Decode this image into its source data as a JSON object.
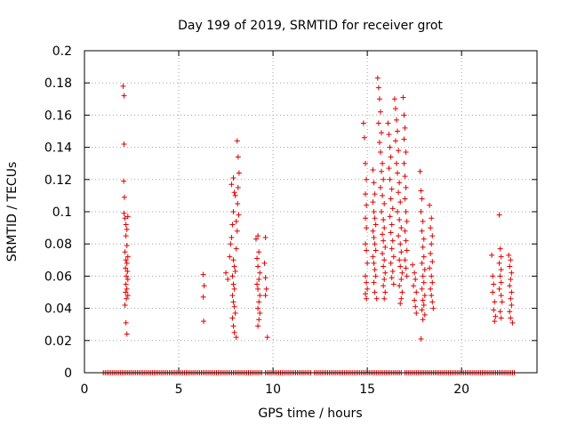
{
  "chart_data": {
    "type": "scatter",
    "title": "Day 199 of 2019, SRMTID for receiver grot",
    "xlabel": "GPS time / hours",
    "ylabel": "SRMTID / TECUs",
    "xlim": [
      0,
      24
    ],
    "ylim": [
      0,
      0.2
    ],
    "x_ticks": [
      0,
      5,
      10,
      15,
      20
    ],
    "x_tick_labels": [
      "0",
      "5",
      "10",
      "15",
      "20"
    ],
    "y_ticks": [
      0,
      0.02,
      0.04,
      0.06,
      0.08,
      0.1,
      0.12,
      0.14,
      0.16,
      0.18,
      0.2
    ],
    "y_tick_labels": [
      "0",
      "0.02",
      "0.04",
      "0.06",
      "0.08",
      "0.1",
      "0.12",
      "0.14",
      "0.16",
      "0.18",
      "0.2"
    ],
    "grid": true,
    "marker": "+",
    "marker_color": "#e00000",
    "zero_baseline_ranges": [
      [
        1.0,
        9.4
      ],
      [
        9.6,
        12.0
      ],
      [
        12.2,
        16.8
      ],
      [
        17.0,
        22.8
      ]
    ],
    "series": [
      {
        "name": "SRMTID",
        "points": [
          [
            2.05,
            0.178
          ],
          [
            2.1,
            0.172
          ],
          [
            2.1,
            0.142
          ],
          [
            2.08,
            0.119
          ],
          [
            2.12,
            0.109
          ],
          [
            2.1,
            0.099
          ],
          [
            2.15,
            0.096
          ],
          [
            2.2,
            0.092
          ],
          [
            2.25,
            0.089
          ],
          [
            2.3,
            0.097
          ],
          [
            2.2,
            0.085
          ],
          [
            2.25,
            0.079
          ],
          [
            2.15,
            0.075
          ],
          [
            2.3,
            0.072
          ],
          [
            2.2,
            0.07
          ],
          [
            2.25,
            0.068
          ],
          [
            2.18,
            0.065
          ],
          [
            2.28,
            0.063
          ],
          [
            2.22,
            0.06
          ],
          [
            2.3,
            0.058
          ],
          [
            2.2,
            0.055
          ],
          [
            2.25,
            0.052
          ],
          [
            2.18,
            0.05
          ],
          [
            2.3,
            0.048
          ],
          [
            2.22,
            0.046
          ],
          [
            2.15,
            0.042
          ],
          [
            2.2,
            0.031
          ],
          [
            2.25,
            0.024
          ],
          [
            6.3,
            0.061
          ],
          [
            6.35,
            0.054
          ],
          [
            6.3,
            0.047
          ],
          [
            6.32,
            0.032
          ],
          [
            7.5,
            0.062
          ],
          [
            7.6,
            0.058
          ],
          [
            7.7,
            0.072
          ],
          [
            7.75,
            0.08
          ],
          [
            7.8,
            0.084
          ],
          [
            7.85,
            0.092
          ],
          [
            7.9,
            0.1
          ],
          [
            7.95,
            0.112
          ],
          [
            7.8,
            0.117
          ],
          [
            7.9,
            0.121
          ],
          [
            8.0,
            0.11
          ],
          [
            8.05,
            0.094
          ],
          [
            8.1,
            0.088
          ],
          [
            8.05,
            0.077
          ],
          [
            7.9,
            0.07
          ],
          [
            7.95,
            0.066
          ],
          [
            8.0,
            0.063
          ],
          [
            7.85,
            0.06
          ],
          [
            7.9,
            0.055
          ],
          [
            7.95,
            0.052
          ],
          [
            7.85,
            0.048
          ],
          [
            7.9,
            0.044
          ],
          [
            7.95,
            0.041
          ],
          [
            8.0,
            0.037
          ],
          [
            7.85,
            0.034
          ],
          [
            7.9,
            0.029
          ],
          [
            7.95,
            0.025
          ],
          [
            8.05,
            0.022
          ],
          [
            8.1,
            0.144
          ],
          [
            8.15,
            0.134
          ],
          [
            8.2,
            0.124
          ],
          [
            8.15,
            0.115
          ],
          [
            8.12,
            0.105
          ],
          [
            8.18,
            0.098
          ],
          [
            9.1,
            0.083
          ],
          [
            9.2,
            0.085
          ],
          [
            9.25,
            0.075
          ],
          [
            9.15,
            0.071
          ],
          [
            9.2,
            0.066
          ],
          [
            9.3,
            0.062
          ],
          [
            9.25,
            0.058
          ],
          [
            9.15,
            0.055
          ],
          [
            9.2,
            0.052
          ],
          [
            9.3,
            0.048
          ],
          [
            9.25,
            0.044
          ],
          [
            9.2,
            0.04
          ],
          [
            9.3,
            0.037
          ],
          [
            9.25,
            0.033
          ],
          [
            9.2,
            0.029
          ],
          [
            9.6,
            0.084
          ],
          [
            9.55,
            0.068
          ],
          [
            9.6,
            0.059
          ],
          [
            9.65,
            0.052
          ],
          [
            9.6,
            0.048
          ],
          [
            9.7,
            0.022
          ],
          [
            14.8,
            0.155
          ],
          [
            14.85,
            0.146
          ],
          [
            14.9,
            0.13
          ],
          [
            14.95,
            0.12
          ],
          [
            14.9,
            0.111
          ],
          [
            14.95,
            0.104
          ],
          [
            14.9,
            0.096
          ],
          [
            14.95,
            0.09
          ],
          [
            14.9,
            0.08
          ],
          [
            14.95,
            0.076
          ],
          [
            15.0,
            0.068
          ],
          [
            14.9,
            0.06
          ],
          [
            14.95,
            0.056
          ],
          [
            15.0,
            0.052
          ],
          [
            14.9,
            0.049
          ],
          [
            14.95,
            0.046
          ],
          [
            15.3,
            0.126
          ],
          [
            15.35,
            0.118
          ],
          [
            15.4,
            0.111
          ],
          [
            15.3,
            0.106
          ],
          [
            15.35,
            0.1
          ],
          [
            15.4,
            0.096
          ],
          [
            15.45,
            0.092
          ],
          [
            15.3,
            0.088
          ],
          [
            15.35,
            0.084
          ],
          [
            15.4,
            0.08
          ],
          [
            15.45,
            0.076
          ],
          [
            15.3,
            0.072
          ],
          [
            15.35,
            0.068
          ],
          [
            15.4,
            0.064
          ],
          [
            15.45,
            0.06
          ],
          [
            15.35,
            0.056
          ],
          [
            15.4,
            0.05
          ],
          [
            15.5,
            0.046
          ],
          [
            15.55,
            0.183
          ],
          [
            15.6,
            0.177
          ],
          [
            15.65,
            0.17
          ],
          [
            15.7,
            0.162
          ],
          [
            15.6,
            0.155
          ],
          [
            15.75,
            0.149
          ],
          [
            15.65,
            0.143
          ],
          [
            15.7,
            0.137
          ],
          [
            15.8,
            0.13
          ],
          [
            15.75,
            0.125
          ],
          [
            15.85,
            0.12
          ],
          [
            15.7,
            0.115
          ],
          [
            15.8,
            0.11
          ],
          [
            15.9,
            0.105
          ],
          [
            15.75,
            0.1
          ],
          [
            15.85,
            0.095
          ],
          [
            15.9,
            0.09
          ],
          [
            15.8,
            0.086
          ],
          [
            15.85,
            0.082
          ],
          [
            15.95,
            0.078
          ],
          [
            15.8,
            0.074
          ],
          [
            15.9,
            0.07
          ],
          [
            15.85,
            0.066
          ],
          [
            15.95,
            0.062
          ],
          [
            15.9,
            0.058
          ],
          [
            15.85,
            0.054
          ],
          [
            15.95,
            0.05
          ],
          [
            15.9,
            0.046
          ],
          [
            16.1,
            0.155
          ],
          [
            16.15,
            0.148
          ],
          [
            16.2,
            0.14
          ],
          [
            16.25,
            0.134
          ],
          [
            16.15,
            0.127
          ],
          [
            16.2,
            0.12
          ],
          [
            16.3,
            0.114
          ],
          [
            16.25,
            0.108
          ],
          [
            16.35,
            0.102
          ],
          [
            16.2,
            0.097
          ],
          [
            16.3,
            0.092
          ],
          [
            16.25,
            0.087
          ],
          [
            16.35,
            0.082
          ],
          [
            16.3,
            0.077
          ],
          [
            16.4,
            0.072
          ],
          [
            16.25,
            0.068
          ],
          [
            16.35,
            0.063
          ],
          [
            16.3,
            0.059
          ],
          [
            16.4,
            0.055
          ],
          [
            16.45,
            0.17
          ],
          [
            16.5,
            0.164
          ],
          [
            16.55,
            0.157
          ],
          [
            16.6,
            0.15
          ],
          [
            16.5,
            0.144
          ],
          [
            16.65,
            0.138
          ],
          [
            16.55,
            0.13
          ],
          [
            16.6,
            0.124
          ],
          [
            16.7,
            0.118
          ],
          [
            16.65,
            0.112
          ],
          [
            16.75,
            0.106
          ],
          [
            16.6,
            0.1
          ],
          [
            16.7,
            0.095
          ],
          [
            16.8,
            0.09
          ],
          [
            16.65,
            0.085
          ],
          [
            16.75,
            0.08
          ],
          [
            16.8,
            0.075
          ],
          [
            16.7,
            0.07
          ],
          [
            16.75,
            0.066
          ],
          [
            16.85,
            0.062
          ],
          [
            16.8,
            0.058
          ],
          [
            16.7,
            0.054
          ],
          [
            16.85,
            0.05
          ],
          [
            16.8,
            0.046
          ],
          [
            16.75,
            0.043
          ],
          [
            16.9,
            0.171
          ],
          [
            16.95,
            0.16
          ],
          [
            17.0,
            0.152
          ],
          [
            16.95,
            0.145
          ],
          [
            17.05,
            0.137
          ],
          [
            16.95,
            0.13
          ],
          [
            17.0,
            0.122
          ],
          [
            17.05,
            0.115
          ],
          [
            17.0,
            0.108
          ],
          [
            17.05,
            0.1
          ],
          [
            17.1,
            0.094
          ],
          [
            17.0,
            0.088
          ],
          [
            17.05,
            0.082
          ],
          [
            17.1,
            0.076
          ],
          [
            17.0,
            0.07
          ],
          [
            17.05,
            0.065
          ],
          [
            17.1,
            0.06
          ],
          [
            17.4,
            0.067
          ],
          [
            17.5,
            0.062
          ],
          [
            17.55,
            0.058
          ],
          [
            17.45,
            0.054
          ],
          [
            17.6,
            0.05
          ],
          [
            17.5,
            0.045
          ],
          [
            17.55,
            0.041
          ],
          [
            17.6,
            0.037
          ],
          [
            17.8,
            0.125
          ],
          [
            17.85,
            0.113
          ],
          [
            17.9,
            0.108
          ],
          [
            17.85,
            0.1
          ],
          [
            17.95,
            0.094
          ],
          [
            17.9,
            0.088
          ],
          [
            18.0,
            0.083
          ],
          [
            17.95,
            0.078
          ],
          [
            18.0,
            0.072
          ],
          [
            17.9,
            0.068
          ],
          [
            18.05,
            0.064
          ],
          [
            17.95,
            0.06
          ],
          [
            18.0,
            0.056
          ],
          [
            17.9,
            0.052
          ],
          [
            18.05,
            0.048
          ],
          [
            17.95,
            0.045
          ],
          [
            18.0,
            0.042
          ],
          [
            17.9,
            0.039
          ],
          [
            18.05,
            0.036
          ],
          [
            17.95,
            0.033
          ],
          [
            17.85,
            0.021
          ],
          [
            18.3,
            0.104
          ],
          [
            18.4,
            0.096
          ],
          [
            18.35,
            0.09
          ],
          [
            18.45,
            0.085
          ],
          [
            18.4,
            0.08
          ],
          [
            18.35,
            0.074
          ],
          [
            18.45,
            0.069
          ],
          [
            18.3,
            0.065
          ],
          [
            18.4,
            0.06
          ],
          [
            18.45,
            0.056
          ],
          [
            18.35,
            0.052
          ],
          [
            18.4,
            0.048
          ],
          [
            18.45,
            0.044
          ],
          [
            18.5,
            0.04
          ],
          [
            21.6,
            0.073
          ],
          [
            21.65,
            0.06
          ],
          [
            21.7,
            0.055
          ],
          [
            21.65,
            0.05
          ],
          [
            21.75,
            0.044
          ],
          [
            21.7,
            0.039
          ],
          [
            21.8,
            0.035
          ],
          [
            21.75,
            0.032
          ],
          [
            22.0,
            0.098
          ],
          [
            22.05,
            0.077
          ],
          [
            22.1,
            0.072
          ],
          [
            22.0,
            0.068
          ],
          [
            22.1,
            0.064
          ],
          [
            22.05,
            0.06
          ],
          [
            22.1,
            0.056
          ],
          [
            22.0,
            0.052
          ],
          [
            22.1,
            0.048
          ],
          [
            22.15,
            0.044
          ],
          [
            22.05,
            0.038
          ],
          [
            22.1,
            0.034
          ],
          [
            22.5,
            0.073
          ],
          [
            22.6,
            0.07
          ],
          [
            22.55,
            0.066
          ],
          [
            22.65,
            0.062
          ],
          [
            22.6,
            0.058
          ],
          [
            22.55,
            0.054
          ],
          [
            22.65,
            0.05
          ],
          [
            22.6,
            0.046
          ],
          [
            22.65,
            0.042
          ],
          [
            22.55,
            0.038
          ],
          [
            22.6,
            0.034
          ],
          [
            22.7,
            0.031
          ]
        ]
      }
    ]
  }
}
